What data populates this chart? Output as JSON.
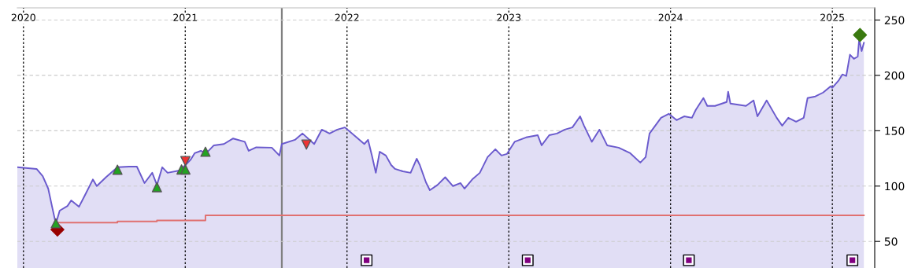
{
  "chart_data": {
    "type": "area",
    "xlim": [
      2019.962,
      2025.262
    ],
    "ylim": [
      26,
      261
    ],
    "xticks": [
      2020,
      2021,
      2022,
      2023,
      2024,
      2025
    ],
    "yticks": [
      50,
      100,
      150,
      200,
      250
    ],
    "grid": true,
    "ref_lines": [
      {
        "axis": "x",
        "value": 2021.597,
        "color": "#808080",
        "line_style": "solid"
      }
    ],
    "series": [
      {
        "color": "#6a5acd",
        "x": [
          2019.962,
          2020.081,
          2020.119,
          2020.153,
          2020.176,
          2020.2,
          2020.224,
          2020.272,
          2020.295,
          2020.343,
          2020.381,
          2020.429,
          2020.453,
          2020.51,
          2020.581,
          2020.653,
          2020.701,
          2020.748,
          2020.796,
          2020.825,
          2020.858,
          2020.891,
          2020.963,
          2021.001,
          2021.034,
          2021.058,
          2021.096,
          2021.13,
          2021.177,
          2021.239,
          2021.296,
          2021.368,
          2021.392,
          2021.439,
          2021.535,
          2021.582,
          2021.597,
          2021.678,
          2021.725,
          2021.797,
          2021.844,
          2021.892,
          2021.94,
          2021.987,
          2022.059,
          2022.107,
          2022.13,
          2022.154,
          2022.178,
          2022.202,
          2022.24,
          2022.273,
          2022.297,
          2022.345,
          2022.393,
          2022.431,
          2022.45,
          2022.488,
          2022.512,
          2022.559,
          2022.607,
          2022.655,
          2022.702,
          2022.726,
          2022.774,
          2022.821,
          2022.869,
          2022.917,
          2022.955,
          2022.988,
          2023.036,
          2023.107,
          2023.179,
          2023.203,
          2023.25,
          2023.298,
          2023.346,
          2023.393,
          2023.441,
          2023.465,
          2023.513,
          2023.56,
          2023.608,
          2023.679,
          2023.751,
          2023.813,
          2023.846,
          2023.87,
          2023.941,
          2023.989,
          2024.037,
          2024.084,
          2024.132,
          2024.156,
          2024.203,
          2024.227,
          2024.275,
          2024.347,
          2024.356,
          2024.37,
          2024.466,
          2024.513,
          2024.537,
          2024.594,
          2024.656,
          2024.69,
          2024.728,
          2024.776,
          2024.823,
          2024.847,
          2024.895,
          2024.943,
          2024.99,
          2025.0,
          2025.038,
          2025.062,
          2025.086,
          2025.109,
          2025.133,
          2025.157,
          2025.166,
          2025.181,
          2025.195
        ],
        "values": [
          117,
          115.5,
          109,
          97.7,
          82,
          66,
          77.8,
          82,
          87,
          81.3,
          92,
          106,
          100,
          108,
          117,
          117.6,
          117.6,
          102.7,
          112,
          101,
          117,
          112,
          114,
          119,
          124,
          129.7,
          131.8,
          129.7,
          136.8,
          138,
          143,
          140,
          131.8,
          135,
          134.7,
          127.6,
          138,
          141.8,
          147.5,
          138,
          151,
          147.5,
          151,
          153,
          144,
          138,
          141.8,
          127.6,
          112,
          131,
          127.6,
          119,
          115.5,
          113.3,
          112,
          124.7,
          119,
          103.4,
          96.3,
          101,
          108,
          100,
          102.7,
          97.7,
          106,
          112,
          126.2,
          133.3,
          127.6,
          129,
          140,
          144,
          146,
          136.8,
          146,
          147.5,
          151,
          153,
          163,
          154.6,
          140,
          151,
          136.8,
          134.7,
          129.7,
          121.2,
          126.2,
          147.5,
          161.7,
          165.3,
          159.6,
          163,
          161.7,
          168.9,
          179.5,
          172.4,
          172.4,
          176,
          185.2,
          174.5,
          172.4,
          177.4,
          163,
          177.4,
          161.7,
          154.6,
          161.7,
          158.2,
          161.7,
          179.5,
          181,
          184.5,
          190.2,
          188.8,
          195.2,
          200.9,
          199.5,
          218.7,
          215,
          217,
          232.9,
          222,
          229.4
        ]
      },
      {
        "type": "step",
        "color": "#e07070",
        "x": [
          2020.2,
          2020.581,
          2020.825,
          2021.125,
          2025.195
        ],
        "values": [
          67,
          68,
          69,
          73.5,
          73.5
        ]
      },
      {
        "type": "scatter",
        "color": "#22a322",
        "marker": "triangle",
        "x": [
          2020.2,
          2020.581,
          2020.825,
          2020.977,
          2021.001,
          2021.125
        ],
        "values": [
          66.4,
          114.8,
          99,
          115,
          115,
          131
        ]
      },
      {
        "type": "scatter",
        "color": "#ee3333",
        "marker": "triangle_down",
        "x": [
          2021.001,
          2021.749
        ],
        "values": [
          122.6,
          137.5
        ]
      },
      {
        "type": "scatter",
        "color": "#990000",
        "marker": "diamond",
        "x": [
          2020.21
        ],
        "values": [
          60.7
        ]
      },
      {
        "type": "scatter",
        "color": "#3a7a10",
        "marker": "diamond",
        "x": [
          2025.171
        ],
        "values": [
          236.5
        ]
      },
      {
        "type": "scatter",
        "color": "#800080",
        "marker": "square",
        "x": [
          2022.121,
          2023.117,
          2024.113,
          2025.124
        ],
        "values": [
          33,
          33,
          33,
          33
        ]
      }
    ]
  }
}
